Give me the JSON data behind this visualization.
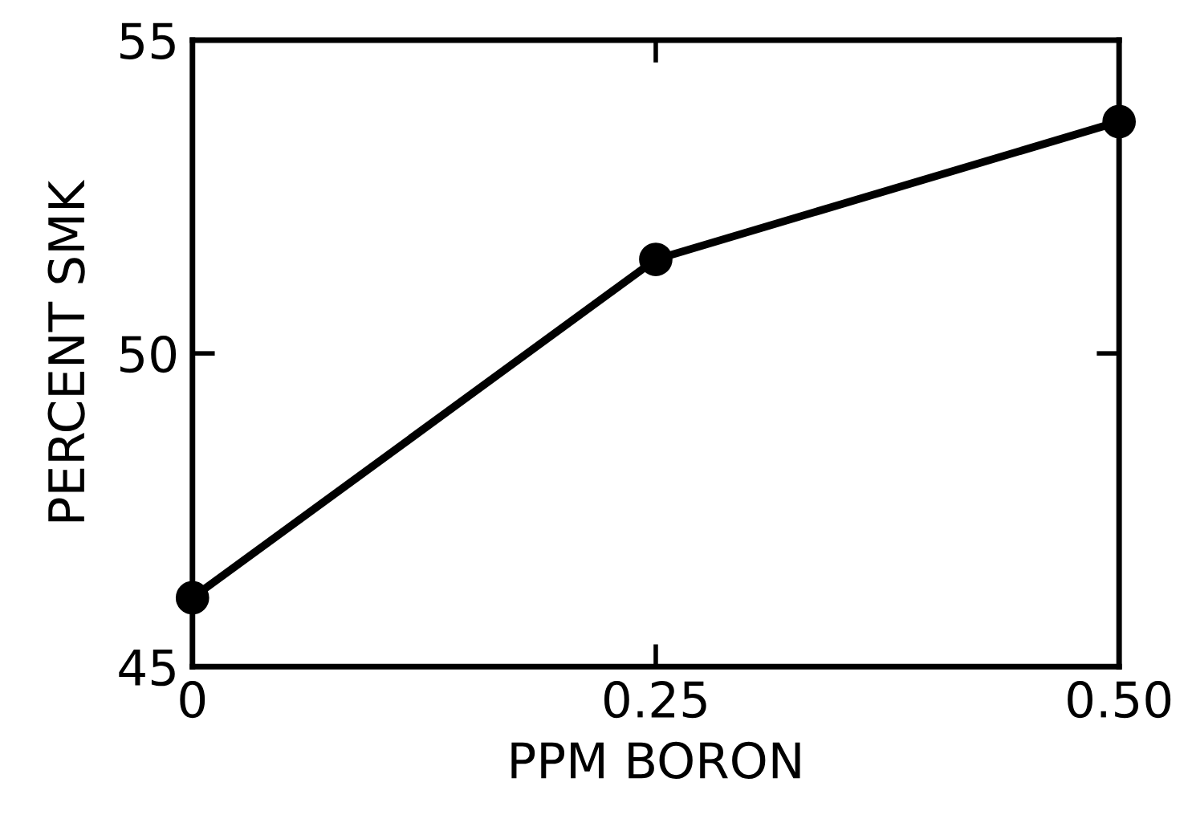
{
  "chart_data": {
    "type": "line",
    "xlabel": "PPM BORON",
    "ylabel": "PERCENT SMK",
    "x": [
      0,
      0.25,
      0.5
    ],
    "series": [
      {
        "color": "#000000",
        "values": [
          46.1,
          51.5,
          53.7
        ]
      }
    ],
    "xlim": [
      0,
      0.5
    ],
    "ylim": [
      45,
      55
    ],
    "xticks": [
      0,
      0.25,
      {
        "value": 0.5,
        "label": "0.50"
      }
    ],
    "yticks": [
      45,
      50,
      55
    ],
    "marker": "circle",
    "line_style": "solid",
    "grid": false,
    "legend": false
  }
}
